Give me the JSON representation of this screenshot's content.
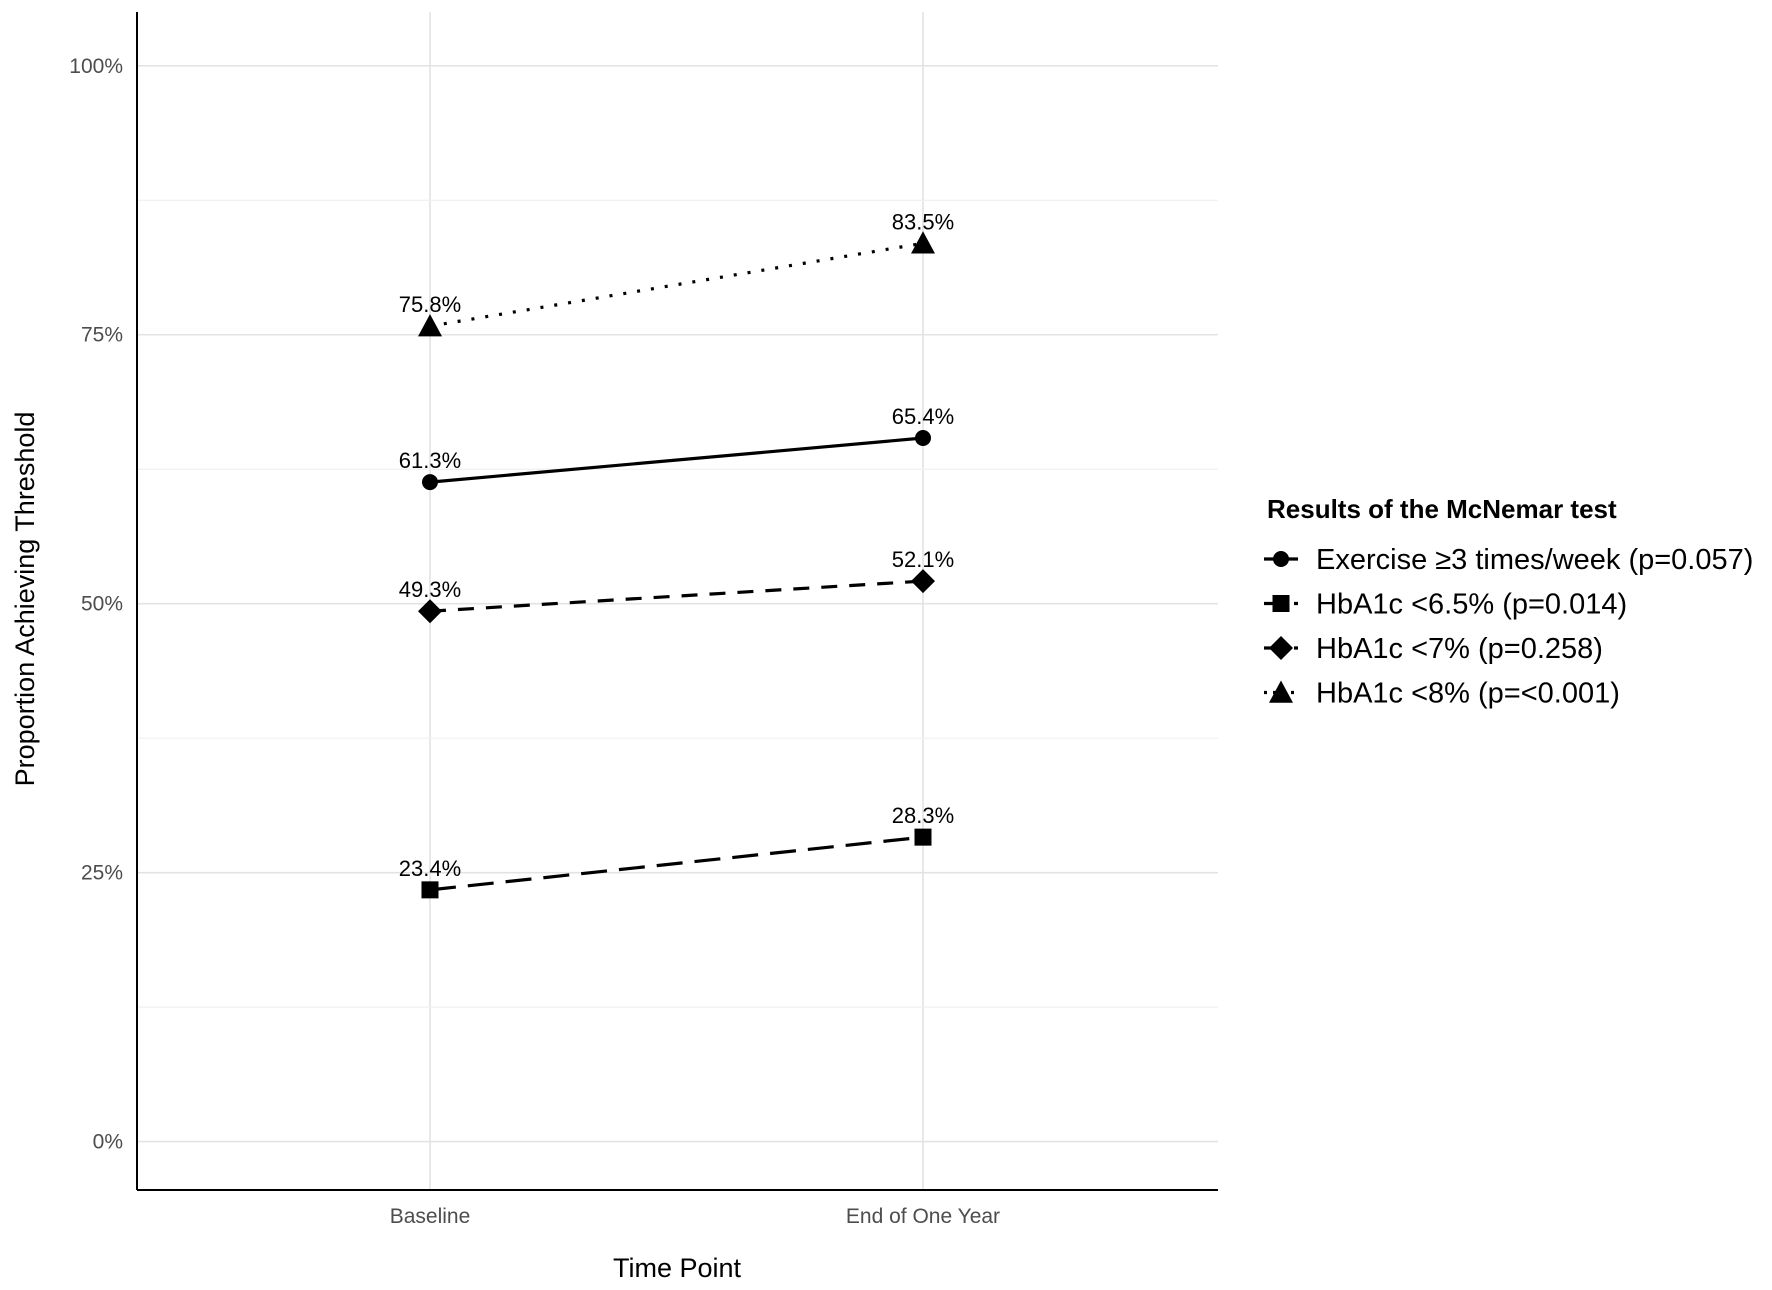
{
  "chart_data": {
    "type": "line",
    "categories": [
      "Baseline",
      "End of One Year"
    ],
    "xlabel": "Time Point",
    "ylabel": "Proportion Achieving Threshold",
    "ylim": [
      -0.045,
      1.05
    ],
    "y_ticks": [
      0,
      0.25,
      0.5,
      0.75,
      1.0
    ],
    "y_tick_labels": [
      "0%",
      "25%",
      "50%",
      "75%",
      "100%"
    ],
    "grid": true,
    "legend": {
      "title": "Results of the McNemar test",
      "position": "right"
    },
    "series": [
      {
        "name": "Exercise ≥3 times/week (p=0.057)",
        "values": [
          0.613,
          0.654
        ],
        "labels": [
          "61.3%",
          "65.4%"
        ],
        "marker": "circle",
        "line_style": "solid"
      },
      {
        "name": "HbA1c <6.5% (p=0.014)",
        "values": [
          0.234,
          0.283
        ],
        "labels": [
          "23.4%",
          "28.3%"
        ],
        "marker": "square",
        "line_style": "longdash"
      },
      {
        "name": "HbA1c <7% (p=0.258)",
        "values": [
          0.493,
          0.521
        ],
        "labels": [
          "49.3%",
          "52.1%"
        ],
        "marker": "diamond",
        "line_style": "dashed"
      },
      {
        "name": "HbA1c <8% (p=<0.001)",
        "values": [
          0.758,
          0.835
        ],
        "labels": [
          "75.8%",
          "83.5%"
        ],
        "marker": "triangle",
        "line_style": "dotted"
      }
    ]
  }
}
